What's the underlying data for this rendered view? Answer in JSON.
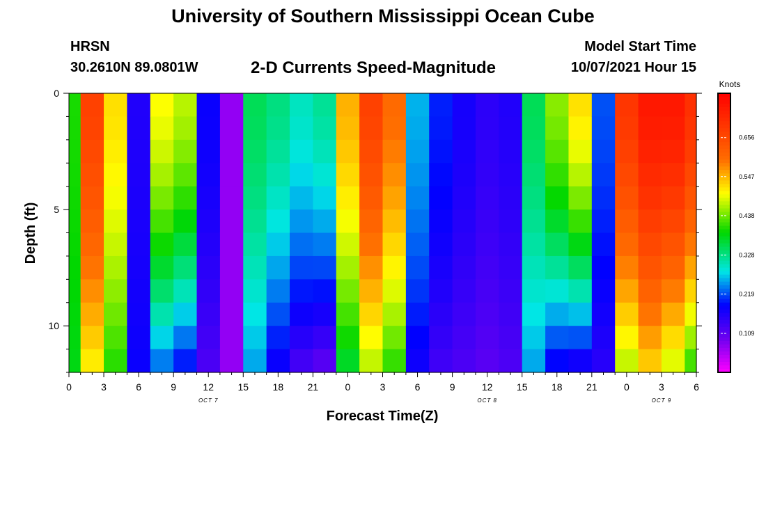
{
  "header": {
    "title": "University of Southern Mississippi Ocean Cube",
    "station": "HRSN",
    "coordinates": "30.2610N  89.0801W",
    "subtitle": "2-D Currents Speed-Magnitude",
    "model_label": "Model Start Time",
    "model_time": "10/07/2021 Hour 15"
  },
  "footer": {
    "title": "University of Southern Mississippi Ocean Cube"
  },
  "chart_data": {
    "type": "heatmap",
    "title": "2-D Currents Speed-Magnitude",
    "xlabel": "Forecast Time(Z)",
    "ylabel": "Depth (ft)",
    "units": "Knots",
    "x_range_hours": [
      0,
      54
    ],
    "y_range_ft": [
      0,
      12
    ],
    "x_tick_labels": [
      "0",
      "3",
      "6",
      "9",
      "12",
      "15",
      "18",
      "21",
      "0",
      "3",
      "6",
      "9",
      "12",
      "15",
      "18",
      "21",
      "0",
      "3",
      "6"
    ],
    "y_ticks": [
      0,
      5,
      10
    ],
    "date_labels": [
      {
        "hour": 12,
        "label": "OCT 7"
      },
      {
        "hour": 36,
        "label": "OCT 8"
      },
      {
        "hour": 51,
        "label": "OCT 9"
      }
    ],
    "colorbar_ticks": [
      0.109,
      0.219,
      0.328,
      0.438,
      0.547,
      0.656
    ],
    "colorbar_range": [
      0.0,
      0.78
    ],
    "depth_levels_ft": [
      0.5,
      1.5,
      2.5,
      3.5,
      4.5,
      5.5,
      6.5,
      7.5,
      8.5,
      9.5,
      10.5,
      11.5
    ],
    "time_columns_hours": [
      0,
      2,
      4,
      6,
      8,
      10,
      12,
      14,
      16,
      18,
      20,
      22,
      24,
      26,
      28,
      30,
      32,
      34,
      36,
      38,
      40,
      42,
      44,
      46,
      48,
      50,
      52,
      54
    ],
    "speed_surface_knots": [
      0.4,
      0.67,
      0.52,
      0.16,
      0.5,
      0.47,
      0.18,
      0.07,
      0.35,
      0.33,
      0.3,
      0.32,
      0.55,
      0.67,
      0.6,
      0.26,
      0.2,
      0.17,
      0.15,
      0.16,
      0.35,
      0.45,
      0.52,
      0.22,
      0.69,
      0.74,
      0.74,
      0.7
    ],
    "speed_bottom_knots": [
      0.38,
      0.5,
      0.4,
      0.18,
      0.22,
      0.18,
      0.12,
      0.07,
      0.25,
      0.17,
      0.12,
      0.1,
      0.36,
      0.46,
      0.4,
      0.17,
      0.13,
      0.12,
      0.11,
      0.12,
      0.25,
      0.17,
      0.15,
      0.15,
      0.46,
      0.52,
      0.47,
      0.4
    ]
  }
}
